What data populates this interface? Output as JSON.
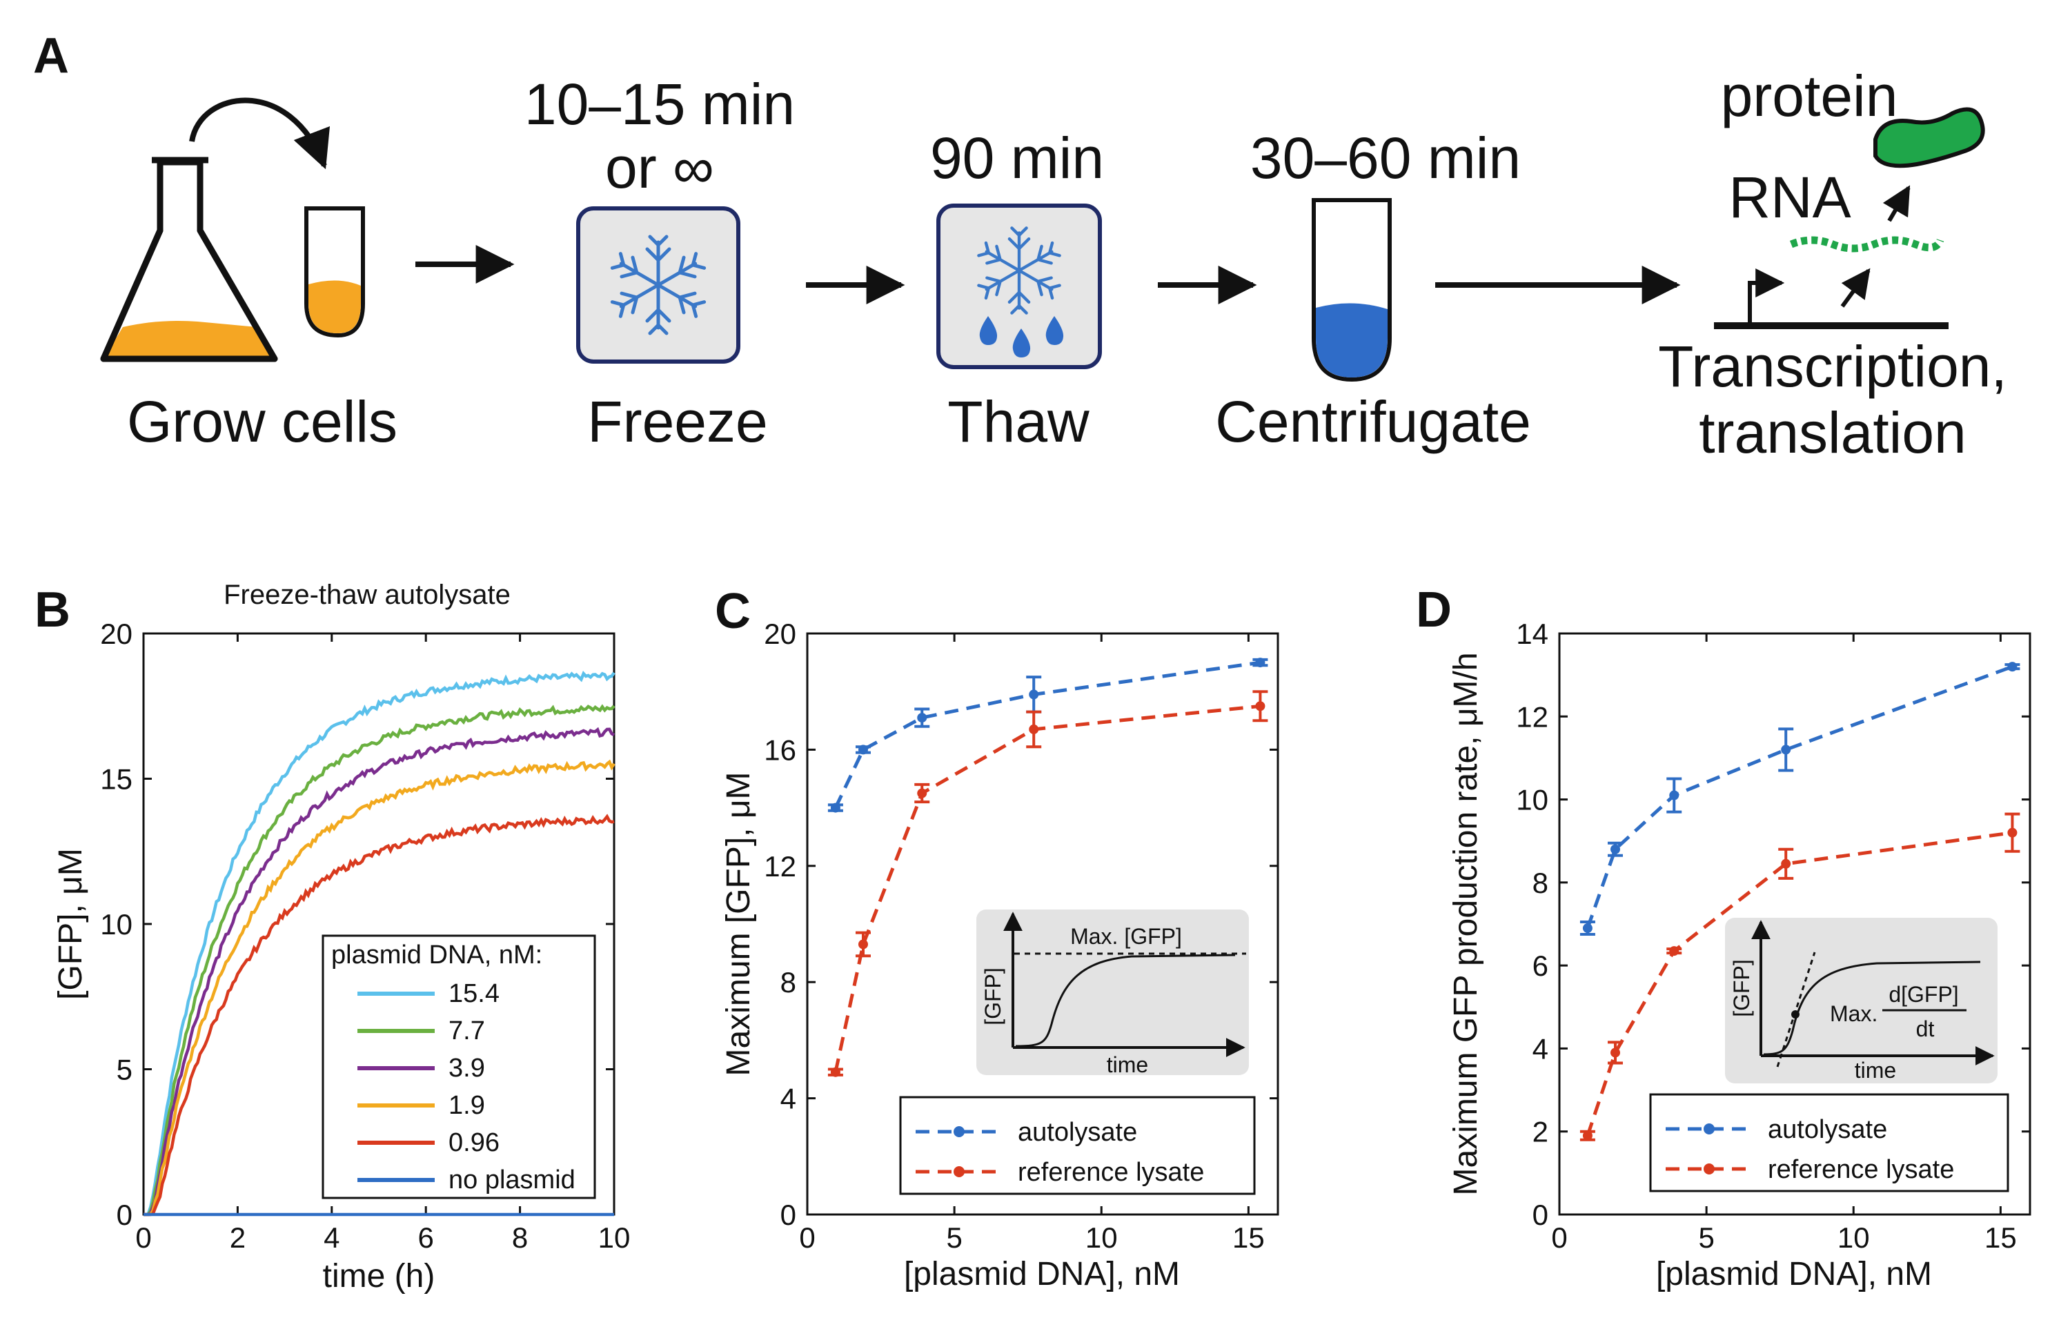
{
  "panel_labels": {
    "a": "A",
    "b": "B",
    "c": "C",
    "d": "D"
  },
  "workflow": {
    "grow": {
      "label": "Grow cells"
    },
    "freeze": {
      "time_line1": "10–15 min",
      "time_line2": "or ∞",
      "label": "Freeze"
    },
    "thaw": {
      "time": "90 min",
      "label": "Thaw"
    },
    "centrifuge": {
      "time": "30–60 min",
      "label": "Centrifugate"
    },
    "expression": {
      "protein": "protein",
      "rna": "RNA",
      "label_line1": "Transcription,",
      "label_line2": "translation"
    },
    "colors": {
      "culture": "#F5A623",
      "ice_box": "#E6E6E6",
      "ice_border": "#1F2A66",
      "snowflake": "#3A78C8",
      "lysate": "#2F6CC8",
      "protein": "#1FA64A",
      "rna": "#1FA64A"
    }
  },
  "chart_data": [
    {
      "id": "B",
      "type": "line",
      "title": "Freeze-thaw autolysate",
      "xlabel": "time (h)",
      "ylabel": "[GFP], μM",
      "xlim": [
        0,
        10
      ],
      "ylim": [
        0,
        20
      ],
      "xticks": [
        "0",
        "2",
        "4",
        "6",
        "8",
        "10"
      ],
      "yticks": [
        "0",
        "5",
        "10",
        "15",
        "20"
      ],
      "legend_title": "plasmid DNA, nM:",
      "legend_position": "bottom-right",
      "series": [
        {
          "name": "15.4",
          "color": "#5BC0EB",
          "plateau": 18.6,
          "k": 0.58,
          "delay": 0.08
        },
        {
          "name": "7.7",
          "color": "#6AB040",
          "plateau": 17.5,
          "k": 0.55,
          "delay": 0.1
        },
        {
          "name": "3.9",
          "color": "#7B2D8E",
          "plateau": 16.7,
          "k": 0.52,
          "delay": 0.12
        },
        {
          "name": "1.9",
          "color": "#F2A91E",
          "plateau": 15.6,
          "k": 0.5,
          "delay": 0.14
        },
        {
          "name": "0.96",
          "color": "#D93A1E",
          "plateau": 13.7,
          "k": 0.5,
          "delay": 0.18
        },
        {
          "name": "no plasmid",
          "color": "#2E6DC4",
          "plateau": 0.0,
          "k": 0.5,
          "delay": 0.0
        }
      ]
    },
    {
      "id": "C",
      "type": "line",
      "xlabel": "[plasmid DNA], nM",
      "ylabel": "Maximum [GFP], μM",
      "xlim": [
        0,
        16
      ],
      "ylim": [
        0,
        20
      ],
      "xticks": [
        "0",
        "5",
        "10",
        "15"
      ],
      "yticks": [
        "0",
        "4",
        "8",
        "12",
        "16",
        "20"
      ],
      "x": [
        0.96,
        1.9,
        3.9,
        7.7,
        15.4
      ],
      "legend_position": "bottom-right",
      "series": [
        {
          "name": "autolysate",
          "color": "#2E6DC4",
          "values": [
            14.0,
            16.0,
            17.1,
            17.9,
            19.0
          ],
          "errors": [
            0.1,
            0.1,
            0.3,
            0.6,
            0.1
          ]
        },
        {
          "name": "reference lysate",
          "color": "#D93A1E",
          "values": [
            4.9,
            9.3,
            14.5,
            16.7,
            17.5
          ],
          "errors": [
            0.1,
            0.4,
            0.3,
            0.6,
            0.5
          ]
        }
      ],
      "inset": {
        "ylabel": "[GFP]",
        "xlabel": "time",
        "annotation": "Max. [GFP]"
      }
    },
    {
      "id": "D",
      "type": "line",
      "xlabel": "[plasmid DNA], nM",
      "ylabel": "Maximum GFP production rate, μM/h",
      "xlim": [
        0,
        16
      ],
      "ylim": [
        0,
        14
      ],
      "xticks": [
        "0",
        "5",
        "10",
        "15"
      ],
      "yticks": [
        "0",
        "2",
        "4",
        "6",
        "8",
        "10",
        "12",
        "14"
      ],
      "x": [
        0.96,
        1.9,
        3.9,
        7.7,
        15.4
      ],
      "legend_position": "bottom-right",
      "series": [
        {
          "name": "autolysate",
          "color": "#2E6DC4",
          "values": [
            6.9,
            8.8,
            10.1,
            11.2,
            13.2
          ],
          "errors": [
            0.15,
            0.15,
            0.4,
            0.5,
            0.05
          ]
        },
        {
          "name": "reference lysate",
          "color": "#D93A1E",
          "values": [
            1.9,
            3.9,
            6.35,
            8.45,
            9.2
          ],
          "errors": [
            0.1,
            0.25,
            0.05,
            0.35,
            0.45
          ]
        }
      ],
      "inset": {
        "ylabel": "[GFP]",
        "xlabel": "time",
        "annotation_prefix": "Max.",
        "fraction_num": "d[GFP]",
        "fraction_den": "dt"
      }
    }
  ]
}
